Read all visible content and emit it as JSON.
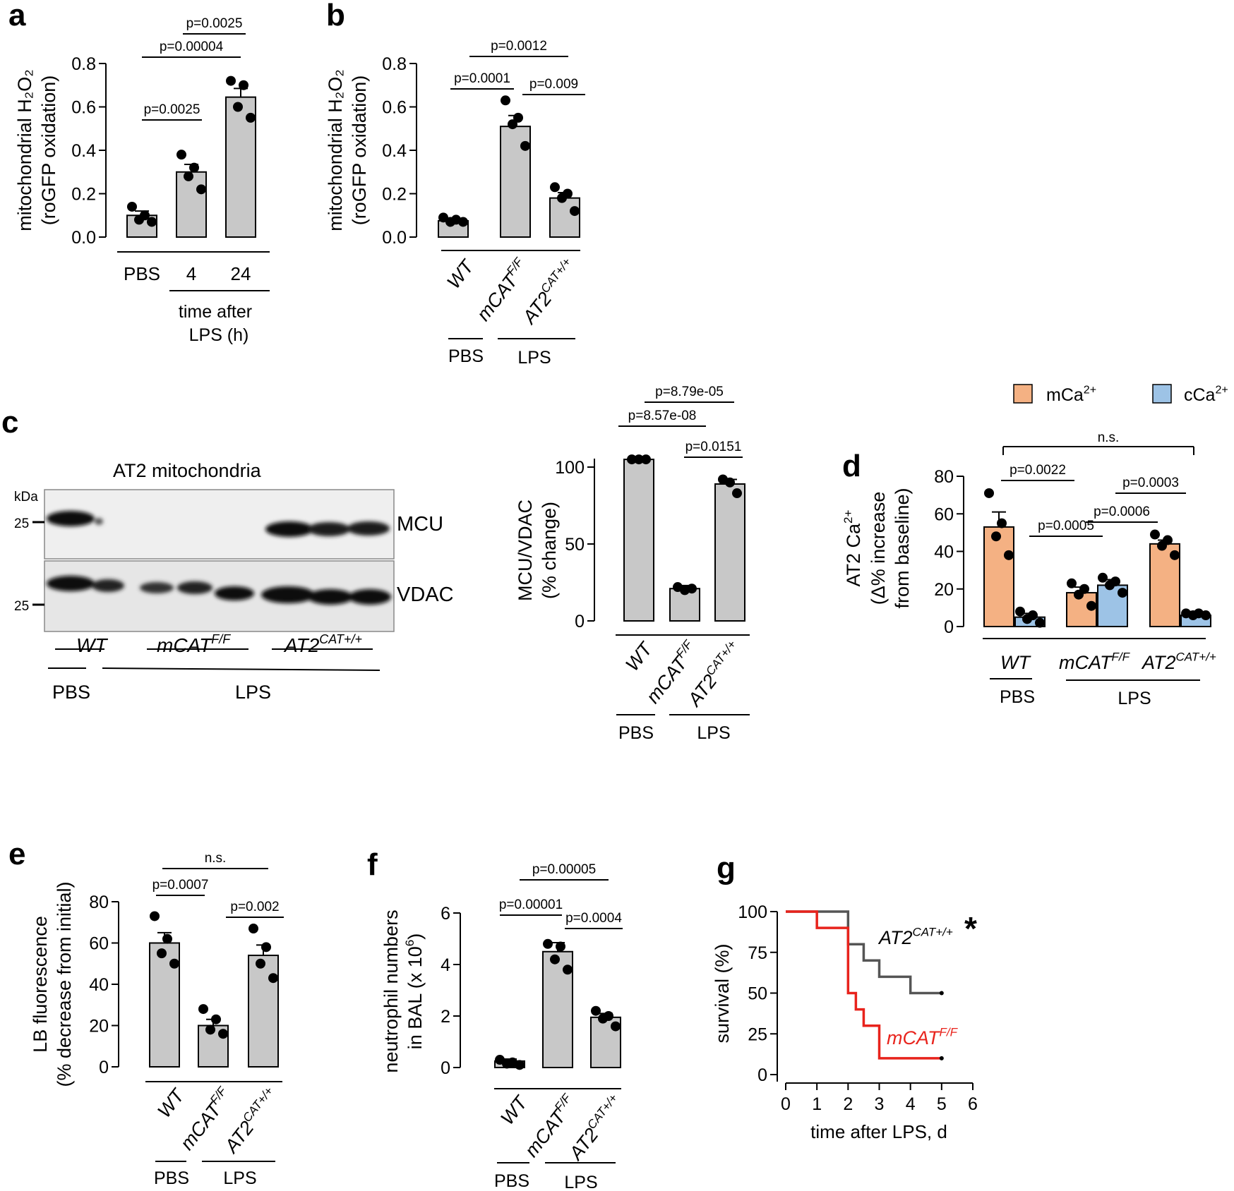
{
  "colors": {
    "bar": "#c8c8c8",
    "mCa": "#f4b183",
    "cCa": "#9dc3e6",
    "red": "#e8231c",
    "gray_line": "#555555"
  },
  "panel_labels": {
    "a": "a",
    "b": "b",
    "c": "c",
    "d": "d",
    "e": "e",
    "f": "f",
    "g": "g"
  },
  "chart_data": [
    {
      "panel": "a",
      "type": "bar",
      "categories": [
        "PBS",
        "4",
        "24"
      ],
      "values": [
        0.1,
        0.3,
        0.645
      ],
      "errors": [
        0.02,
        0.035,
        0.04
      ],
      "points": [
        [
          0.14,
          0.1,
          0.08,
          0.07
        ],
        [
          0.38,
          0.32,
          0.28,
          0.22
        ],
        [
          0.72,
          0.7,
          0.6,
          0.55
        ]
      ],
      "ylabel": "mitochondrial H₂O₂",
      "ylabel2": "(roGFP oxidation)",
      "ylim": [
        0,
        0.8
      ],
      "yticks": [
        "0.0",
        "0.2",
        "0.4",
        "0.6",
        "0.8"
      ],
      "group_label_line1": "time after",
      "group_label_line2": "LPS (h)",
      "pvalues": [
        "p=0.0025",
        "p=0.00004",
        "p=0.0025"
      ]
    },
    {
      "panel": "b",
      "type": "bar",
      "categories": [
        "WT",
        "mCAT",
        "AT2"
      ],
      "superscripts": [
        "",
        "F/F",
        "CAT+/+"
      ],
      "values": [
        0.075,
        0.51,
        0.18
      ],
      "errors": [
        0.01,
        0.05,
        0.025
      ],
      "points": [
        [
          0.09,
          0.08,
          0.07,
          0.07
        ],
        [
          0.63,
          0.55,
          0.52,
          0.42
        ],
        [
          0.23,
          0.2,
          0.18,
          0.12
        ]
      ],
      "ylabel": "mitochondrial H₂O₂",
      "ylabel2": "(roGFP oxidation)",
      "ylim": [
        0,
        0.8
      ],
      "yticks": [
        "0.0",
        "0.2",
        "0.4",
        "0.6",
        "0.8"
      ],
      "groups": [
        "PBS",
        "LPS"
      ],
      "pvalues": [
        "p=0.0001",
        "p=0.0012",
        "p=0.009"
      ]
    },
    {
      "panel": "c",
      "type": "bar",
      "categories": [
        "WT",
        "mCAT",
        "AT2"
      ],
      "superscripts": [
        "",
        "F/F",
        "CAT+/+"
      ],
      "values": [
        105,
        21,
        89
      ],
      "errors": [
        0.5,
        2,
        3
      ],
      "points": [
        [
          105,
          105,
          105
        ],
        [
          22,
          20,
          21
        ],
        [
          92,
          90,
          83
        ]
      ],
      "ylabel": "MCU/VDAC",
      "ylabel2": "(% change)",
      "ylim": [
        0,
        110
      ],
      "yticks": [
        "0",
        "50",
        "100"
      ],
      "groups": [
        "PBS",
        "LPS"
      ],
      "pvalues": [
        "p=8.57e-08",
        "p=8.79e-05",
        "p=0.0151"
      ]
    },
    {
      "panel": "d",
      "type": "bar",
      "categories": [
        "WT",
        "mCAT",
        "AT2"
      ],
      "superscripts": [
        "",
        "F/F",
        "CAT+/+"
      ],
      "series": [
        {
          "name": "mCa",
          "superscript": "2+",
          "values": [
            53,
            18,
            44
          ],
          "errors": [
            8,
            3,
            2
          ],
          "points": [
            [
              71,
              55,
              48,
              38
            ],
            [
              23,
              20,
              17,
              11
            ],
            [
              49,
              46,
              43,
              38
            ]
          ]
        },
        {
          "name": "cCa",
          "superscript": "2+",
          "values": [
            5,
            22,
            6
          ],
          "errors": [
            2,
            3,
            2
          ],
          "points": [
            [
              8,
              6,
              4,
              2
            ],
            [
              26,
              24,
              22,
              18
            ],
            [
              7,
              7,
              6,
              6
            ]
          ]
        }
      ],
      "ylabel": "AT2 Ca",
      "ylabel_sup": "2+",
      "ylabel2": "(Δ% increase",
      "ylabel3": "from baseline)",
      "ylim": [
        0,
        80
      ],
      "yticks": [
        "0",
        "20",
        "40",
        "60",
        "80"
      ],
      "groups": [
        "PBS",
        "LPS"
      ],
      "pvalues": [
        "p=0.0022",
        "p=0.0005",
        "p=0.0006",
        "p=0.0003",
        "n.s."
      ]
    },
    {
      "panel": "e",
      "type": "bar",
      "categories": [
        "WT",
        "mCAT",
        "AT2"
      ],
      "superscripts": [
        "",
        "F/F",
        "CAT+/+"
      ],
      "values": [
        60,
        20,
        54
      ],
      "errors": [
        5,
        3,
        5
      ],
      "points": [
        [
          73,
          62,
          55,
          50
        ],
        [
          28,
          23,
          18,
          16
        ],
        [
          67,
          58,
          50,
          43
        ]
      ],
      "ylabel": "LB fluorescence",
      "ylabel2": "(% decrease from initial)",
      "ylim": [
        0,
        80
      ],
      "yticks": [
        "0",
        "20",
        "40",
        "60",
        "80"
      ],
      "groups": [
        "PBS",
        "LPS"
      ],
      "pvalues": [
        "p=0.0007",
        "p=0.002",
        "n.s."
      ]
    },
    {
      "panel": "f",
      "type": "bar",
      "categories": [
        "WT",
        "mCAT",
        "AT2"
      ],
      "superscripts": [
        "",
        "F/F",
        "CAT+/+"
      ],
      "values": [
        0.25,
        4.5,
        1.95
      ],
      "errors": [
        0.08,
        0.35,
        0.15
      ],
      "points": [
        [
          0.3,
          0.2,
          0.15,
          0.1
        ],
        [
          4.8,
          4.7,
          4.2,
          3.8
        ],
        [
          2.2,
          2.0,
          1.9,
          1.6
        ]
      ],
      "ylabel": "neutrophil numbers",
      "ylabel2": "in BAL  (x 10",
      "ylabel2_sup": "6",
      "ylabel2_end": ")",
      "ylim": [
        0,
        6
      ],
      "yticks": [
        "0",
        "2",
        "4",
        "6"
      ],
      "groups": [
        "PBS",
        "LPS"
      ],
      "pvalues": [
        "p=0.00001",
        "p=0.00005",
        "p=0.0004"
      ]
    },
    {
      "panel": "g",
      "type": "line",
      "series": [
        {
          "name": "AT2",
          "superscript": "CAT+/+",
          "marker": "*",
          "x": [
            0,
            2,
            2.5,
            3,
            4,
            5
          ],
          "y": [
            100,
            80,
            70,
            60,
            50,
            50
          ]
        },
        {
          "name": "mCAT",
          "superscript": "F/F",
          "x": [
            0,
            1,
            2,
            2.25,
            2.5,
            3,
            5
          ],
          "y": [
            100,
            90,
            50,
            40,
            30,
            10,
            10
          ]
        }
      ],
      "xlabel": "time after LPS, d",
      "ylabel": "survival (%)",
      "xlim": [
        0,
        6
      ],
      "ylim": [
        0,
        100
      ],
      "xticks": [
        "0",
        "1",
        "2",
        "3",
        "4",
        "5",
        "6"
      ],
      "yticks": [
        "0",
        "25",
        "50",
        "75",
        "100"
      ]
    }
  ],
  "blot": {
    "title": "AT2 mitochondria",
    "kda": "kDa",
    "marker": "25",
    "bands": [
      "MCU",
      "VDAC"
    ],
    "lanes": [
      "WT",
      "mCAT",
      "AT2"
    ],
    "lane_sups": [
      "",
      "F/F",
      "CAT+/+"
    ],
    "groups": [
      "PBS",
      "LPS"
    ]
  }
}
